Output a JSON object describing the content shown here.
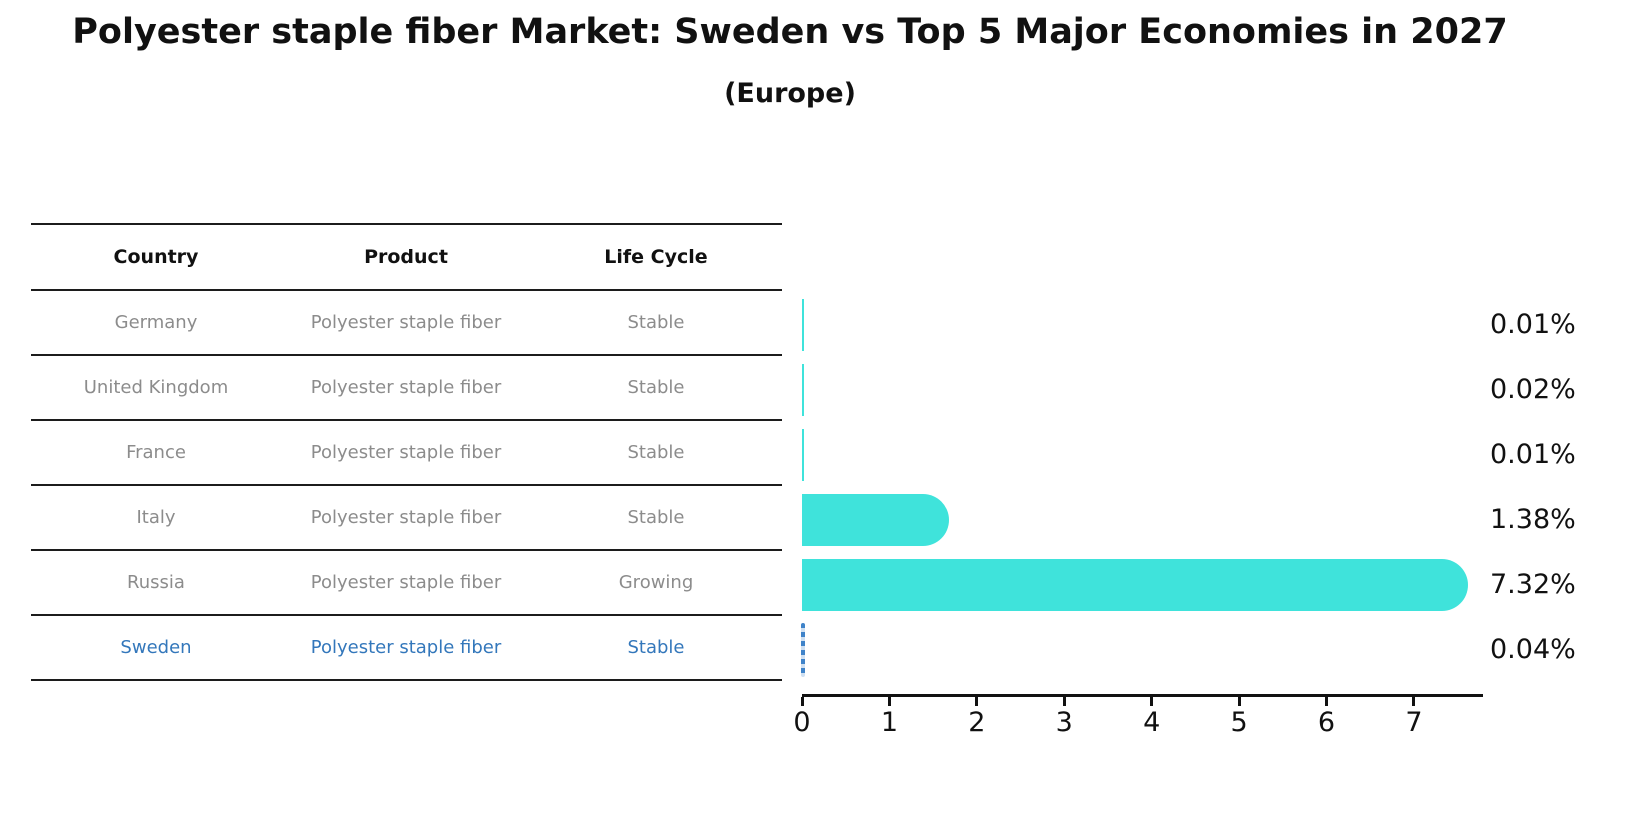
{
  "title": "Polyester staple fiber Market: Sweden vs Top 5 Major Economies in 2027",
  "subtitle": "(Europe)",
  "table": {
    "headers": [
      "Country",
      "Product",
      "Life Cycle"
    ],
    "rows": [
      {
        "country": "Germany",
        "product": "Polyester staple fiber",
        "life_cycle": "Stable",
        "highlighted": false
      },
      {
        "country": "United Kingdom",
        "product": "Polyester staple fiber",
        "life_cycle": "Stable",
        "highlighted": false
      },
      {
        "country": "France",
        "product": "Polyester staple fiber",
        "life_cycle": "Stable",
        "highlighted": false
      },
      {
        "country": "Italy",
        "product": "Polyester staple fiber",
        "life_cycle": "Stable",
        "highlighted": false
      },
      {
        "country": "Russia",
        "product": "Polyester staple fiber",
        "life_cycle": "Growing",
        "highlighted": false
      },
      {
        "country": "Sweden",
        "product": "Polyester staple fiber",
        "life_cycle": "Stable",
        "highlighted": true
      }
    ]
  },
  "chart_data": {
    "type": "bar",
    "orientation": "horizontal",
    "title": "Polyester staple fiber Market: Sweden vs Top 5 Major Economies in 2027 (Europe)",
    "categories": [
      "Germany",
      "United Kingdom",
      "France",
      "Italy",
      "Russia",
      "Sweden"
    ],
    "values": [
      0.01,
      0.02,
      0.01,
      1.38,
      7.32,
      0.04
    ],
    "value_labels": [
      "0.01%",
      "0.02%",
      "0.01%",
      "1.38%",
      "7.32%",
      "0.04%"
    ],
    "x_ticks": [
      0,
      1,
      2,
      3,
      4,
      5,
      6,
      7
    ],
    "xlim": [
      0,
      7.79
    ],
    "grid": false,
    "legend": false,
    "bar_color": "#3FE3DB",
    "highlight_index": 5,
    "highlight_marker_color": "#3F83C9",
    "highlight_style": "dashed-vertical-line"
  },
  "colors": {
    "bar": "#3FE3DB",
    "highlight_text": "#3377BB",
    "highlight_marker": "#3F83C9",
    "row_text": "#8C8C8C",
    "header_text": "#111111",
    "axis": "#111111"
  }
}
